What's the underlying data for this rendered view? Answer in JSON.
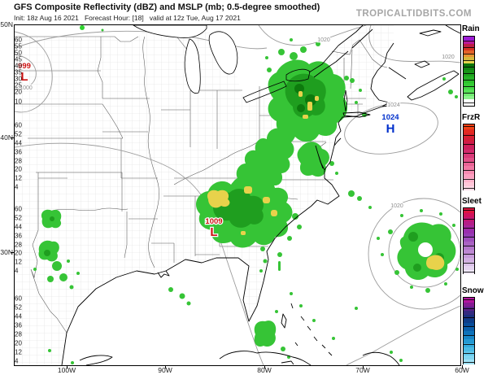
{
  "header": {
    "title": "GFS Composite Reflectivity (dBZ) and MSLP (mb; 0.5-degree smoothed)",
    "subtitle": "Init: 18z Aug 16 2021   Forecast Hour: [18]   valid at 12z Tue, Aug 17 2021",
    "watermark": "TROPICALTIDBITS.COM"
  },
  "axes": {
    "lat_labels": [
      "50N",
      "40N",
      "30N"
    ],
    "lon_labels": [
      "100W",
      "90W",
      "80W",
      "70W",
      "60W"
    ]
  },
  "map": {
    "pressure_centers": [
      {
        "symbol": "L",
        "value": "999",
        "color": "#cc1111"
      },
      {
        "symbol": "L",
        "value": "1009",
        "color": "#cc1111"
      },
      {
        "symbol": "H",
        "value": "1024",
        "color": "#0030cc"
      }
    ],
    "contour_labels": [
      "1000",
      "1020",
      "1020",
      "1024",
      "1020"
    ],
    "palette": {
      "reflectivity_light": "#36c436",
      "reflectivity_mid": "#1f9e1f",
      "reflectivity_dark": "#0d7a0d",
      "reflectivity_heavy": "#e8d24b",
      "contour_gray": "#9c9c9c"
    }
  },
  "legend": {
    "items": [
      {
        "name": "Rain",
        "ticks": [
          "60",
          "55",
          "50",
          "45",
          "40",
          "35",
          "30",
          "25",
          "20",
          "10"
        ],
        "colors_bottom_to_top": [
          "#ffffff",
          "#ffffff",
          "#8df28d",
          "#70eb70",
          "#57e257",
          "#44d844",
          "#35cc35",
          "#2cc12c",
          "#25b425",
          "#1ea51e",
          "#179517",
          "#108410",
          "#0a730a",
          "#e4d44e",
          "#d4b83c",
          "#e89433",
          "#e2632a",
          "#d63222",
          "#bc1e44",
          "#bb189a",
          "#9c1cd4"
        ]
      },
      {
        "name": "FrzR",
        "ticks": [
          "60",
          "52",
          "44",
          "36",
          "28",
          "20",
          "12",
          "4"
        ],
        "colors_bottom_to_top": [
          "#ffd9e6",
          "#ffc6d9",
          "#ffb3cc",
          "#fc9fbf",
          "#f78bb1",
          "#f077a3",
          "#e96295",
          "#e14e87",
          "#d93a79",
          "#d22a6c",
          "#cc1f5e",
          "#ce1a4b",
          "#d31d3a",
          "#da212c",
          "#e32a20",
          "#ee4114"
        ]
      },
      {
        "name": "Sleet",
        "ticks": [
          "60",
          "52",
          "44",
          "36",
          "28",
          "20",
          "12",
          "4"
        ],
        "colors_bottom_to_top": [
          "#f0e8f8",
          "#e5d4f0",
          "#dbc1e9",
          "#d1aee1",
          "#c79bda",
          "#bd88d2",
          "#b375cb",
          "#a962c3",
          "#9f4fbc",
          "#953cb4",
          "#9a2fae",
          "#a7269c",
          "#b41e88",
          "#c21773",
          "#d0125c",
          "#de1640"
        ]
      },
      {
        "name": "Snow",
        "ticks": [
          "60",
          "52",
          "44",
          "36",
          "28",
          "20",
          "12",
          "4"
        ],
        "colors_bottom_to_top": [
          "#a0e2f6",
          "#82d6f1",
          "#64c9ec",
          "#4bbbe5",
          "#36abdd",
          "#2499d3",
          "#1786c8",
          "#0e72ba",
          "#0a5fab",
          "#084d9a",
          "#0c3d89",
          "#1b307e",
          "#342a80",
          "#5a2289",
          "#851b93",
          "#b2149e"
        ]
      }
    ]
  }
}
